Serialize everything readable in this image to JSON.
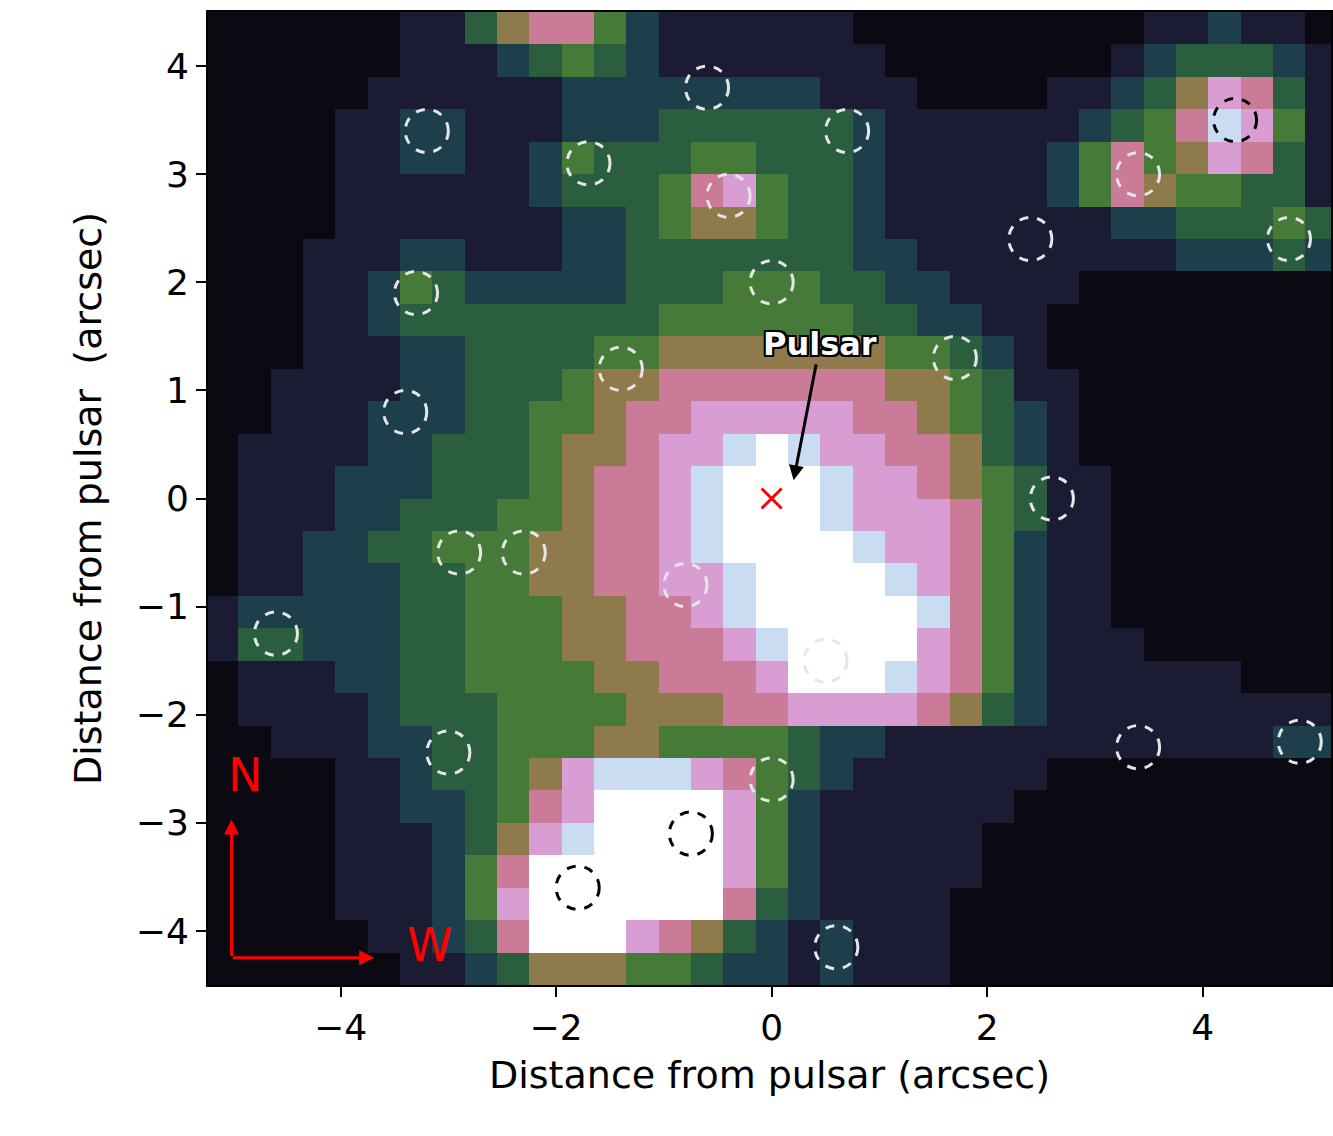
{
  "chart_data": {
    "type": "heatmap",
    "x_label": "Distance from pulsar (arcsec)",
    "y_label": "Distance from pulsar  (arcsec)",
    "xlim": [
      -5.23,
      5.19
    ],
    "ylim": [
      -4.5,
      4.5
    ],
    "xticks": [
      -4,
      -2,
      0,
      2,
      4
    ],
    "yticks": [
      -4,
      -3,
      -2,
      -1,
      0,
      1,
      2,
      3,
      4
    ],
    "x": [
      -5.1,
      -4.8,
      -4.5,
      -4.2,
      -3.9,
      -3.6,
      -3.3,
      -3.0,
      -2.7,
      -2.4,
      -2.1,
      -1.8,
      -1.5,
      -1.2,
      -0.9,
      -0.6,
      -0.3,
      0,
      0.3,
      0.6,
      0.9,
      1.2,
      1.5,
      1.8,
      2.1,
      2.4,
      2.7,
      3.0,
      3.3,
      3.6,
      3.9,
      4.2,
      4.5,
      4.8,
      5.1
    ],
    "y": [
      -4.35,
      -4.05,
      -3.75,
      -3.45,
      -3.15,
      -2.85,
      -2.55,
      -2.25,
      -1.95,
      -1.65,
      -1.35,
      -1.05,
      -0.75,
      -0.45,
      -0.15,
      0.15,
      0.45,
      0.75,
      1.05,
      1.35,
      1.65,
      1.95,
      2.25,
      2.55,
      2.85,
      3.15,
      3.45,
      3.75,
      4.05,
      4.35
    ],
    "z": [
      [
        0,
        0,
        0,
        0,
        0,
        0,
        1,
        1,
        2,
        3,
        5,
        5,
        5,
        4,
        4,
        3,
        2,
        2,
        1,
        2,
        1,
        1,
        1,
        0,
        0,
        0,
        0,
        0,
        0,
        0,
        0,
        0,
        0,
        0,
        0
      ],
      [
        0,
        0,
        0,
        0,
        0,
        1,
        1,
        2,
        3,
        6,
        9,
        9,
        9,
        7,
        6,
        5,
        3,
        2,
        1,
        2,
        1,
        1,
        1,
        0,
        0,
        0,
        0,
        0,
        0,
        0,
        0,
        0,
        0,
        0,
        0
      ],
      [
        0,
        0,
        0,
        0,
        1,
        1,
        1,
        2,
        4,
        7,
        9,
        9,
        9,
        9,
        9,
        9,
        6,
        3,
        2,
        1,
        1,
        1,
        1,
        0,
        0,
        0,
        0,
        0,
        0,
        0,
        0,
        0,
        0,
        0,
        0
      ],
      [
        0,
        0,
        0,
        0,
        1,
        1,
        1,
        2,
        4,
        6,
        9,
        9,
        9,
        9,
        9,
        9,
        7,
        4,
        2,
        1,
        1,
        1,
        1,
        1,
        0,
        0,
        0,
        0,
        0,
        0,
        0,
        0,
        0,
        0,
        0
      ],
      [
        0,
        0,
        0,
        0,
        1,
        1,
        1,
        2,
        3,
        5,
        7,
        8,
        9,
        9,
        9,
        9,
        7,
        4,
        2,
        1,
        1,
        1,
        1,
        1,
        0,
        0,
        0,
        0,
        0,
        0,
        0,
        0,
        0,
        0,
        0
      ],
      [
        0,
        0,
        0,
        0,
        1,
        1,
        2,
        2,
        3,
        4,
        6,
        7,
        9,
        9,
        9,
        9,
        7,
        4,
        2,
        1,
        1,
        1,
        1,
        1,
        1,
        0,
        0,
        0,
        0,
        0,
        0,
        0,
        0,
        0,
        0
      ],
      [
        0,
        0,
        0,
        0,
        1,
        1,
        2,
        3,
        3,
        4,
        5,
        7,
        8,
        8,
        8,
        7,
        6,
        4,
        3,
        2,
        1,
        1,
        1,
        1,
        1,
        1,
        0,
        0,
        0,
        0,
        0,
        0,
        0,
        0,
        0
      ],
      [
        0,
        0,
        1,
        1,
        1,
        2,
        2,
        3,
        3,
        4,
        4,
        4,
        5,
        5,
        4,
        4,
        4,
        4,
        3,
        2,
        2,
        1,
        1,
        1,
        1,
        1,
        1,
        1,
        1,
        1,
        1,
        1,
        1,
        2,
        2
      ],
      [
        0,
        1,
        1,
        1,
        1,
        2,
        3,
        3,
        3,
        4,
        4,
        4,
        4,
        5,
        5,
        5,
        6,
        6,
        7,
        7,
        7,
        7,
        6,
        5,
        3,
        2,
        1,
        1,
        1,
        1,
        1,
        1,
        1,
        1,
        1
      ],
      [
        0,
        1,
        1,
        1,
        2,
        2,
        3,
        3,
        4,
        4,
        4,
        4,
        5,
        5,
        6,
        6,
        6,
        7,
        9,
        9,
        9,
        8,
        7,
        6,
        4,
        2,
        1,
        1,
        1,
        1,
        1,
        1,
        0,
        0,
        0
      ],
      [
        1,
        3,
        3,
        2,
        2,
        2,
        3,
        3,
        4,
        4,
        4,
        5,
        5,
        6,
        6,
        6,
        7,
        8,
        9,
        9,
        9,
        9,
        7,
        6,
        4,
        2,
        1,
        1,
        1,
        0,
        0,
        0,
        0,
        0,
        0
      ],
      [
        1,
        2,
        2,
        2,
        2,
        2,
        3,
        3,
        4,
        4,
        4,
        5,
        5,
        6,
        6,
        7,
        8,
        9,
        9,
        9,
        9,
        9,
        8,
        6,
        4,
        2,
        1,
        1,
        0,
        0,
        0,
        0,
        0,
        0,
        0
      ],
      [
        0,
        1,
        1,
        2,
        2,
        2,
        3,
        3,
        4,
        4,
        5,
        5,
        6,
        6,
        7,
        7,
        8,
        9,
        9,
        9,
        9,
        8,
        7,
        6,
        4,
        2,
        1,
        1,
        0,
        0,
        0,
        0,
        0,
        0,
        0
      ],
      [
        0,
        1,
        1,
        2,
        2,
        3,
        3,
        4,
        4,
        4,
        5,
        5,
        6,
        6,
        7,
        8,
        9,
        9,
        9,
        9,
        8,
        7,
        7,
        6,
        4,
        2,
        1,
        1,
        0,
        0,
        0,
        0,
        0,
        0,
        0
      ],
      [
        0,
        1,
        1,
        1,
        2,
        2,
        3,
        3,
        3,
        4,
        4,
        5,
        6,
        6,
        7,
        8,
        9,
        9,
        9,
        8,
        7,
        7,
        7,
        6,
        4,
        3,
        1,
        1,
        0,
        0,
        0,
        0,
        0,
        0,
        0
      ],
      [
        0,
        1,
        1,
        1,
        2,
        2,
        2,
        3,
        3,
        3,
        4,
        5,
        6,
        6,
        7,
        8,
        9,
        9,
        9,
        8,
        7,
        7,
        6,
        5,
        4,
        3,
        1,
        1,
        0,
        0,
        0,
        0,
        0,
        0,
        0
      ],
      [
        0,
        1,
        1,
        1,
        1,
        2,
        2,
        3,
        3,
        3,
        4,
        5,
        5,
        6,
        7,
        7,
        8,
        9,
        8,
        7,
        7,
        6,
        6,
        5,
        3,
        2,
        1,
        0,
        0,
        0,
        0,
        0,
        0,
        0,
        0
      ],
      [
        0,
        0,
        1,
        1,
        1,
        2,
        2,
        2,
        3,
        3,
        4,
        4,
        5,
        6,
        6,
        7,
        7,
        7,
        7,
        7,
        6,
        6,
        5,
        4,
        3,
        2,
        1,
        0,
        0,
        0,
        0,
        0,
        0,
        0,
        0
      ],
      [
        0,
        0,
        1,
        1,
        1,
        1,
        2,
        2,
        3,
        3,
        3,
        4,
        5,
        5,
        6,
        6,
        6,
        6,
        6,
        6,
        6,
        5,
        5,
        4,
        3,
        1,
        1,
        0,
        0,
        0,
        0,
        0,
        0,
        0,
        0
      ],
      [
        0,
        0,
        0,
        1,
        1,
        1,
        2,
        2,
        3,
        3,
        3,
        3,
        4,
        4,
        5,
        5,
        5,
        5,
        5,
        5,
        5,
        4,
        4,
        3,
        2,
        1,
        0,
        0,
        0,
        0,
        0,
        0,
        0,
        0,
        0
      ],
      [
        0,
        0,
        0,
        1,
        1,
        2,
        3,
        3,
        3,
        3,
        3,
        3,
        3,
        3,
        4,
        4,
        4,
        4,
        4,
        4,
        3,
        3,
        2,
        2,
        1,
        1,
        0,
        0,
        0,
        0,
        0,
        0,
        0,
        0,
        0
      ],
      [
        0,
        0,
        0,
        1,
        1,
        2,
        4,
        3,
        2,
        2,
        2,
        2,
        2,
        3,
        3,
        3,
        4,
        4,
        4,
        3,
        3,
        2,
        2,
        1,
        1,
        1,
        1,
        0,
        0,
        0,
        0,
        0,
        0,
        0,
        0
      ],
      [
        0,
        0,
        0,
        1,
        1,
        1,
        2,
        2,
        1,
        1,
        1,
        2,
        2,
        3,
        3,
        3,
        3,
        3,
        3,
        3,
        2,
        2,
        1,
        1,
        1,
        1,
        1,
        1,
        1,
        1,
        2,
        2,
        2,
        3,
        2
      ],
      [
        0,
        0,
        0,
        0,
        1,
        1,
        1,
        1,
        1,
        1,
        1,
        2,
        2,
        3,
        4,
        5,
        5,
        4,
        3,
        3,
        2,
        1,
        1,
        1,
        1,
        1,
        1,
        1,
        2,
        2,
        3,
        3,
        3,
        4,
        3
      ],
      [
        0,
        0,
        0,
        0,
        1,
        1,
        1,
        1,
        1,
        1,
        2,
        3,
        3,
        3,
        4,
        6,
        7,
        4,
        3,
        3,
        2,
        1,
        1,
        1,
        1,
        1,
        2,
        4,
        6,
        5,
        4,
        4,
        3,
        3,
        1
      ],
      [
        0,
        0,
        0,
        0,
        1,
        1,
        2,
        2,
        1,
        1,
        2,
        4,
        3,
        3,
        3,
        4,
        4,
        3,
        3,
        3,
        2,
        1,
        1,
        1,
        1,
        1,
        2,
        4,
        6,
        4,
        5,
        7,
        6,
        3,
        1
      ],
      [
        0,
        0,
        0,
        0,
        1,
        1,
        2,
        2,
        1,
        1,
        1,
        2,
        2,
        2,
        3,
        3,
        3,
        3,
        3,
        3,
        2,
        1,
        1,
        1,
        1,
        1,
        1,
        2,
        3,
        4,
        6,
        8,
        7,
        4,
        1
      ],
      [
        0,
        0,
        0,
        0,
        0,
        1,
        1,
        1,
        1,
        1,
        1,
        2,
        2,
        2,
        2,
        2,
        2,
        2,
        2,
        1,
        1,
        1,
        0,
        0,
        0,
        0,
        1,
        1,
        2,
        3,
        5,
        7,
        6,
        3,
        1
      ],
      [
        0,
        0,
        0,
        0,
        0,
        0,
        1,
        1,
        1,
        2,
        3,
        4,
        3,
        2,
        1,
        1,
        1,
        1,
        1,
        1,
        1,
        0,
        0,
        0,
        0,
        0,
        0,
        0,
        1,
        2,
        3,
        3,
        3,
        2,
        1
      ],
      [
        0,
        0,
        0,
        0,
        0,
        0,
        1,
        1,
        3,
        5,
        6,
        6,
        4,
        2,
        1,
        1,
        1,
        1,
        1,
        1,
        0,
        0,
        0,
        0,
        0,
        0,
        0,
        0,
        0,
        1,
        1,
        2,
        1,
        1,
        0
      ]
    ],
    "series": [
      {
        "color": "#e6e6e6",
        "marker": "circle",
        "line_style": "dashed",
        "x": [
          -3.2,
          -0.6,
          0.7,
          -1.7,
          -0.4,
          0,
          -3.3,
          -1.4,
          1.7,
          -3.4,
          2.6,
          -2.9,
          -2.3,
          -0.8,
          0.5,
          -4.6,
          -3.0,
          0,
          0.6,
          3.4,
          4.9,
          2.4,
          3.4,
          4.8
        ],
        "y": [
          3.4,
          3.8,
          3.4,
          3.1,
          2.8,
          2.0,
          1.9,
          1.2,
          1.3,
          0.8,
          0,
          -0.5,
          -0.5,
          -0.8,
          -1.5,
          -1.25,
          -2.35,
          -2.6,
          -4.15,
          -2.3,
          -2.25,
          2.4,
          3.0,
          2.4
        ]
      },
      {
        "color": "#000000",
        "marker": "circle",
        "line_style": "dashed",
        "x": [
          4.3,
          -0.75,
          -1.8
        ],
        "y": [
          3.5,
          -3.1,
          -3.6
        ]
      },
      {
        "color": "#ff0000",
        "marker": "x",
        "x": [
          0
        ],
        "y": [
          0
        ]
      }
    ],
    "annotations": [
      {
        "text": "Pulsar",
        "x": 0.45,
        "y": 1.43,
        "arrow_to": [
          0.2,
          0.15
        ],
        "color": "#ffffff"
      }
    ],
    "compass": {
      "north": "N",
      "west": "W",
      "color": "#ff0000"
    }
  }
}
